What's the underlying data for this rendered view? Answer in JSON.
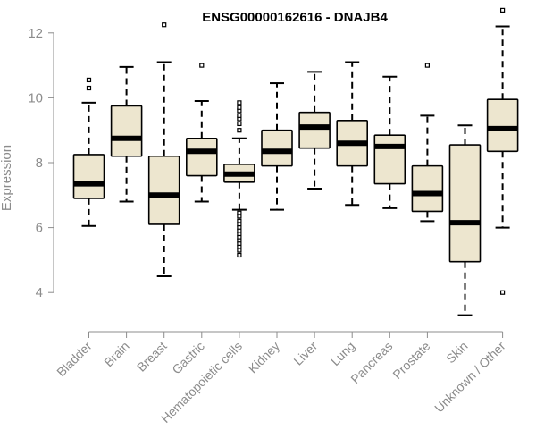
{
  "chart_data": {
    "type": "box",
    "title": "ENSG00000162616 - DNAJB4",
    "xlabel": "",
    "ylabel": "Expression",
    "ylim": [
      3.0,
      13.0
    ],
    "yticks": [
      "4",
      "6",
      "8",
      "10",
      "12"
    ],
    "box_fill": "#ede6cf",
    "categories": [
      "Bladder",
      "Brain",
      "Breast",
      "Gastric",
      "Hematopoietic cells",
      "Kidney",
      "Liver",
      "Lung",
      "Pancreas",
      "Prostate",
      "Skin",
      "Unknown / Other"
    ],
    "boxes": [
      {
        "category": "Bladder",
        "min": 6.05,
        "q1": 6.9,
        "median": 7.35,
        "q3": 8.25,
        "max": 9.85,
        "outliers": [
          10.3,
          10.55
        ]
      },
      {
        "category": "Brain",
        "min": 6.8,
        "q1": 8.2,
        "median": 8.75,
        "q3": 9.75,
        "max": 10.95,
        "outliers": []
      },
      {
        "category": "Breast",
        "min": 4.5,
        "q1": 6.1,
        "median": 7.0,
        "q3": 8.2,
        "max": 11.1,
        "outliers": [
          12.25
        ]
      },
      {
        "category": "Gastric",
        "min": 6.8,
        "q1": 7.6,
        "median": 8.35,
        "q3": 8.75,
        "max": 9.9,
        "outliers": [
          11.0
        ]
      },
      {
        "category": "Hematopoietic cells",
        "min": 6.55,
        "q1": 7.4,
        "median": 7.65,
        "q3": 7.95,
        "max": 8.75,
        "outliers": [
          9.0,
          9.2,
          9.35,
          9.45,
          9.6,
          9.7,
          9.85,
          6.45,
          6.35,
          6.2,
          6.1,
          6.0,
          5.9,
          5.8,
          5.7,
          5.6,
          5.5,
          5.4,
          5.3,
          5.15
        ]
      },
      {
        "category": "Kidney",
        "min": 6.55,
        "q1": 7.9,
        "median": 8.35,
        "q3": 9.0,
        "max": 10.45,
        "outliers": []
      },
      {
        "category": "Liver",
        "min": 7.2,
        "q1": 8.45,
        "median": 9.1,
        "q3": 9.55,
        "max": 10.8,
        "outliers": []
      },
      {
        "category": "Lung",
        "min": 6.7,
        "q1": 7.9,
        "median": 8.6,
        "q3": 9.3,
        "max": 11.1,
        "outliers": []
      },
      {
        "category": "Pancreas",
        "min": 6.6,
        "q1": 7.35,
        "median": 8.5,
        "q3": 8.85,
        "max": 10.65,
        "outliers": []
      },
      {
        "category": "Prostate",
        "min": 6.2,
        "q1": 6.5,
        "median": 7.05,
        "q3": 7.9,
        "max": 9.45,
        "outliers": [
          11.0
        ]
      },
      {
        "category": "Skin",
        "min": 3.3,
        "q1": 4.95,
        "median": 6.15,
        "q3": 8.55,
        "max": 9.15,
        "outliers": []
      },
      {
        "category": "Unknown / Other",
        "min": 6.0,
        "q1": 8.35,
        "median": 9.05,
        "q3": 9.95,
        "max": 12.2,
        "outliers": [
          12.7,
          4.0
        ]
      }
    ]
  }
}
